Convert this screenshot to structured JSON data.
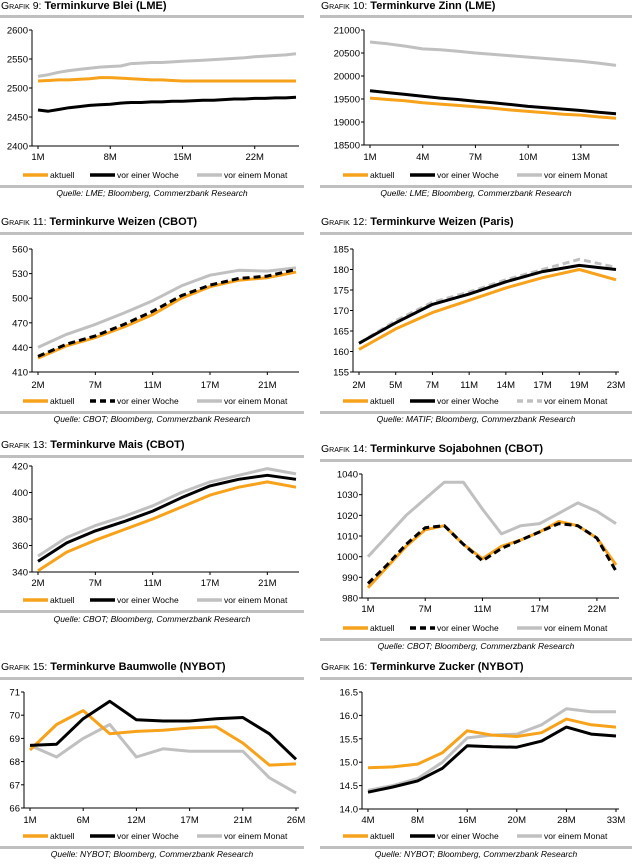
{
  "colors": {
    "aktuell": "#f7a21b",
    "woche": "#000000",
    "monat": "#c0c0c0",
    "rule": "#bfbfbf"
  },
  "chart_data": [
    {
      "type": "line",
      "label": "Grafik 9:",
      "title": "Terminkurve Blei (LME)",
      "source": "Quelle: LME; Bloomberg, Commerzbank Research",
      "ylim": [
        2400,
        2600
      ],
      "yticks": [
        "2400",
        "2450",
        "2500",
        "2550",
        "2600"
      ],
      "categories": [
        "1M",
        "",
        "",
        "",
        "",
        "",
        "",
        "8M",
        "",
        "",
        "",
        "",
        "",
        "",
        "15M",
        "",
        "",
        "",
        "",
        "",
        "",
        "22M",
        "",
        "",
        "",
        ""
      ],
      "series": [
        {
          "name": "aktuell",
          "color": "#f7a21b",
          "style": "solid",
          "values": [
            2512,
            2513,
            2514,
            2514,
            2515,
            2516,
            2518,
            2518,
            2517,
            2516,
            2515,
            2514,
            2514,
            2513,
            2512,
            2512,
            2512,
            2512,
            2512,
            2512,
            2512,
            2512,
            2512,
            2512,
            2512,
            2512
          ]
        },
        {
          "name": "vor einer Woche",
          "color": "#000000",
          "style": "solid",
          "values": [
            2462,
            2460,
            2463,
            2466,
            2468,
            2470,
            2471,
            2472,
            2474,
            2475,
            2475,
            2476,
            2476,
            2477,
            2477,
            2478,
            2479,
            2479,
            2480,
            2481,
            2481,
            2482,
            2482,
            2483,
            2483,
            2484
          ]
        },
        {
          "name": "vor einem Monat",
          "color": "#c0c0c0",
          "style": "solid",
          "values": [
            2520,
            2523,
            2527,
            2530,
            2532,
            2534,
            2536,
            2537,
            2538,
            2542,
            2543,
            2544,
            2544,
            2545,
            2546,
            2547,
            2548,
            2549,
            2550,
            2551,
            2552,
            2554,
            2555,
            2556,
            2557,
            2559
          ]
        }
      ]
    },
    {
      "type": "line",
      "label": "Grafik 10:",
      "title": "Terminkurve Zinn (LME)",
      "source": "Quelle: LME; Bloomberg, Commerzbank Research",
      "ylim": [
        18500,
        21000
      ],
      "yticks": [
        "18500",
        "19000",
        "19500",
        "20000",
        "20500",
        "21000"
      ],
      "categories": [
        "1M",
        "",
        "",
        "4M",
        "",
        "",
        "7M",
        "",
        "",
        "10M",
        "",
        "",
        "13M",
        "",
        ""
      ],
      "series": [
        {
          "name": "aktuell",
          "color": "#f7a21b",
          "style": "solid",
          "values": [
            19520,
            19490,
            19460,
            19420,
            19390,
            19360,
            19330,
            19300,
            19260,
            19230,
            19200,
            19170,
            19150,
            19110,
            19080
          ]
        },
        {
          "name": "vor einer Woche",
          "color": "#000000",
          "style": "solid",
          "values": [
            19680,
            19640,
            19600,
            19560,
            19520,
            19490,
            19450,
            19420,
            19380,
            19340,
            19310,
            19280,
            19250,
            19210,
            19180
          ]
        },
        {
          "name": "vor einem Monat",
          "color": "#c0c0c0",
          "style": "solid",
          "values": [
            20740,
            20700,
            20650,
            20590,
            20570,
            20540,
            20500,
            20470,
            20440,
            20410,
            20380,
            20350,
            20320,
            20280,
            20230
          ]
        }
      ]
    },
    {
      "type": "line",
      "label": "Grafik 11:",
      "title": "Terminkurve Weizen (CBOT)",
      "source": "Quelle: CBOT; Bloomberg, Commerzbank Research",
      "ylim": [
        410,
        560
      ],
      "yticks": [
        "410",
        "440",
        "470",
        "500",
        "530",
        "560"
      ],
      "categories": [
        "2M",
        "",
        "7M",
        "",
        "11M",
        "",
        "17M",
        "",
        "21M",
        ""
      ],
      "series": [
        {
          "name": "aktuell",
          "color": "#f7a21b",
          "style": "solid",
          "values": [
            427,
            442,
            452,
            465,
            480,
            500,
            514,
            522,
            525,
            532
          ]
        },
        {
          "name": "vor einer Woche",
          "color": "#000000",
          "style": "dashed",
          "values": [
            429,
            444,
            454,
            468,
            484,
            503,
            516,
            524,
            527,
            535
          ]
        },
        {
          "name": "vor einem Monat",
          "color": "#c0c0c0",
          "style": "solid",
          "values": [
            440,
            456,
            468,
            482,
            497,
            515,
            528,
            534,
            533,
            537
          ]
        }
      ]
    },
    {
      "type": "line",
      "label": "Grafik 12:",
      "title": "Terminkurve Weizen (Paris)",
      "source": "Quelle: MATIF; Bloomberg, Commerzbank Research",
      "ylim": [
        155,
        185
      ],
      "yticks": [
        "155",
        "160",
        "165",
        "170",
        "175",
        "180",
        "185"
      ],
      "categories": [
        "2M",
        "5M",
        "7M",
        "11M",
        "14M",
        "17M",
        "19M",
        "23M"
      ],
      "series": [
        {
          "name": "aktuell",
          "color": "#f7a21b",
          "style": "solid",
          "values": [
            160.5,
            165.5,
            169.5,
            172.5,
            175.5,
            178,
            180,
            177.5
          ]
        },
        {
          "name": "vor einer Woche",
          "color": "#000000",
          "style": "solid",
          "values": [
            162,
            167,
            171.5,
            174,
            177,
            179.5,
            181,
            180
          ]
        },
        {
          "name": "vor einem Monat",
          "color": "#c0c0c0",
          "style": "dashed",
          "values": [
            162,
            167.5,
            172,
            174.5,
            177.5,
            180,
            182.5,
            180.5
          ]
        }
      ]
    },
    {
      "type": "line",
      "label": "Grafik 13:",
      "title": "Terminkurve Mais (CBOT)",
      "source": "Quelle: CBOT; Bloomberg, Commerzbank Research",
      "ylim": [
        340,
        420
      ],
      "yticks": [
        "340",
        "360",
        "380",
        "400",
        "420"
      ],
      "categories": [
        "2M",
        "",
        "7M",
        "",
        "11M",
        "",
        "17M",
        "",
        "21M",
        ""
      ],
      "series": [
        {
          "name": "aktuell",
          "color": "#f7a21b",
          "style": "solid",
          "values": [
            341,
            355,
            364,
            372,
            380,
            389,
            398,
            404,
            408,
            404
          ]
        },
        {
          "name": "vor einer Woche",
          "color": "#000000",
          "style": "solid",
          "values": [
            348,
            362,
            371,
            378,
            386,
            396,
            405,
            410,
            413,
            410
          ]
        },
        {
          "name": "vor einem Monat",
          "color": "#c0c0c0",
          "style": "solid",
          "values": [
            352,
            366,
            375,
            382,
            390,
            400,
            408,
            413,
            418,
            414
          ]
        }
      ]
    },
    {
      "type": "line",
      "label": "Grafik 14:",
      "title": "Terminkurve Sojabohnen (CBOT)",
      "source": "Quelle: CBOT; Bloomberg, Commerzbank Research",
      "ylim": [
        980,
        1040
      ],
      "yticks": [
        "980",
        "990",
        "1000",
        "1010",
        "1020",
        "1030",
        "1040"
      ],
      "categories": [
        "1M",
        "",
        "",
        "7M",
        "",
        "",
        "11M",
        "",
        "",
        "17M",
        "",
        "",
        "22M",
        ""
      ],
      "series": [
        {
          "name": "aktuell",
          "color": "#f7a21b",
          "style": "solid",
          "values": [
            985,
            995,
            1005,
            1013,
            1015,
            1006,
            999,
            1005,
            1008,
            1012,
            1017,
            1015,
            1009,
            996
          ]
        },
        {
          "name": "vor einer Woche",
          "color": "#000000",
          "style": "dashed",
          "values": [
            987,
            996,
            1006,
            1014,
            1015,
            1006,
            998,
            1004,
            1008,
            1012,
            1016,
            1015,
            1009,
            993
          ]
        },
        {
          "name": "vor einem Monat",
          "color": "#c0c0c0",
          "style": "solid",
          "values": [
            1000,
            1010,
            1020,
            1028,
            1036,
            1036,
            1023,
            1011,
            1015,
            1016,
            1021,
            1026,
            1022,
            1016
          ]
        }
      ]
    },
    {
      "type": "line",
      "label": "Grafik 15:",
      "title": "Terminkurve Baumwolle (NYBOT)",
      "source": "Quelle: NYBOT; Bloomberg, Commerzbank Research",
      "ylim": [
        66,
        71
      ],
      "yticks": [
        "66",
        "67",
        "68",
        "69",
        "70",
        "71"
      ],
      "categories": [
        "1M",
        "",
        "6M",
        "",
        "12M",
        "",
        "17M",
        "",
        "21M",
        "",
        "26M"
      ],
      "series": [
        {
          "name": "aktuell",
          "color": "#f7a21b",
          "style": "solid",
          "values": [
            68.5,
            69.6,
            70.2,
            69.2,
            69.3,
            69.35,
            69.45,
            69.5,
            68.8,
            67.85,
            67.9
          ]
        },
        {
          "name": "vor einer Woche",
          "color": "#000000",
          "style": "solid",
          "values": [
            68.7,
            68.75,
            69.85,
            70.6,
            69.8,
            69.75,
            69.75,
            69.85,
            69.9,
            69.2,
            68.1
          ]
        },
        {
          "name": "vor einem Monat",
          "color": "#c0c0c0",
          "style": "solid",
          "values": [
            68.7,
            68.2,
            69.0,
            69.6,
            68.2,
            68.55,
            68.45,
            68.45,
            68.45,
            67.3,
            66.65
          ]
        }
      ]
    },
    {
      "type": "line",
      "label": "Grafik 16:",
      "title": "Terminkurve Zucker (NYBOT)",
      "source": "Quelle: NYBOT; Bloomberg, Commerzbank Research",
      "ylim": [
        14.0,
        16.5
      ],
      "yticks": [
        "14.0",
        "14.5",
        "15.0",
        "15.5",
        "16.0",
        "16.5"
      ],
      "categories": [
        "4M",
        "",
        "8M",
        "",
        "16M",
        "",
        "20M",
        "",
        "28M",
        "",
        "33M"
      ],
      "series": [
        {
          "name": "aktuell",
          "color": "#f7a21b",
          "style": "solid",
          "values": [
            14.88,
            14.9,
            14.96,
            15.2,
            15.67,
            15.58,
            15.55,
            15.63,
            15.92,
            15.8,
            15.75
          ]
        },
        {
          "name": "vor einer Woche",
          "color": "#000000",
          "style": "solid",
          "values": [
            14.36,
            14.47,
            14.6,
            14.87,
            15.35,
            15.33,
            15.32,
            15.45,
            15.75,
            15.6,
            15.56
          ]
        },
        {
          "name": "vor einem Monat",
          "color": "#c0c0c0",
          "style": "solid",
          "values": [
            14.4,
            14.5,
            14.65,
            15.0,
            15.52,
            15.58,
            15.6,
            15.8,
            16.14,
            16.08,
            16.08
          ]
        }
      ]
    }
  ]
}
